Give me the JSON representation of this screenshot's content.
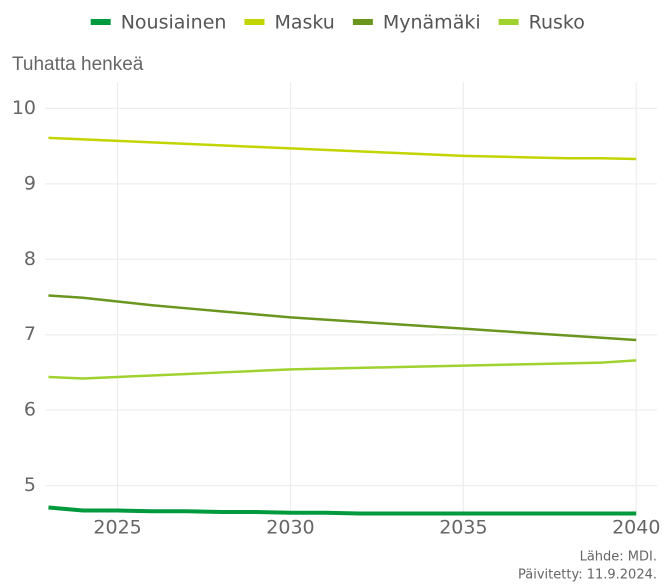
{
  "chart_data": {
    "type": "line",
    "y_label": "Tuhatta henkeä",
    "x": [
      2023,
      2024,
      2025,
      2026,
      2027,
      2028,
      2029,
      2030,
      2031,
      2032,
      2033,
      2034,
      2035,
      2036,
      2037,
      2038,
      2039,
      2040
    ],
    "series": [
      {
        "name": "Nousiainen",
        "color": "#009a3e",
        "values": [
          4.71,
          4.67,
          4.67,
          4.66,
          4.66,
          4.65,
          4.65,
          4.64,
          4.64,
          4.63,
          4.63,
          4.63,
          4.63,
          4.63,
          4.63,
          4.63,
          4.63,
          4.63
        ]
      },
      {
        "name": "Masku",
        "color": "#c3d500",
        "values": [
          9.61,
          9.59,
          9.57,
          9.55,
          9.53,
          9.51,
          9.49,
          9.47,
          9.45,
          9.43,
          9.41,
          9.39,
          9.37,
          9.36,
          9.35,
          9.34,
          9.34,
          9.33
        ]
      },
      {
        "name": "Mynämäki",
        "color": "#6a961f",
        "values": [
          7.52,
          7.49,
          7.44,
          7.39,
          7.35,
          7.31,
          7.27,
          7.23,
          7.2,
          7.17,
          7.14,
          7.11,
          7.08,
          7.05,
          7.02,
          6.99,
          6.96,
          6.93
        ]
      },
      {
        "name": "Rusko",
        "color": "#9fd22e",
        "values": [
          6.44,
          6.42,
          6.44,
          6.46,
          6.48,
          6.5,
          6.52,
          6.54,
          6.55,
          6.56,
          6.57,
          6.58,
          6.59,
          6.6,
          6.61,
          6.62,
          6.63,
          6.66
        ]
      }
    ],
    "xlim": [
      2022.9,
      2040.6
    ],
    "xticks": [
      2025,
      2030,
      2035,
      2040
    ],
    "ylim": [
      4.65,
      10.35
    ],
    "yticks": [
      5,
      6,
      7,
      8,
      9,
      10
    ],
    "grid": true,
    "legend": "top",
    "source": "Lähde: MDI.",
    "updated": "Päivitetty: 11.9.2024."
  }
}
